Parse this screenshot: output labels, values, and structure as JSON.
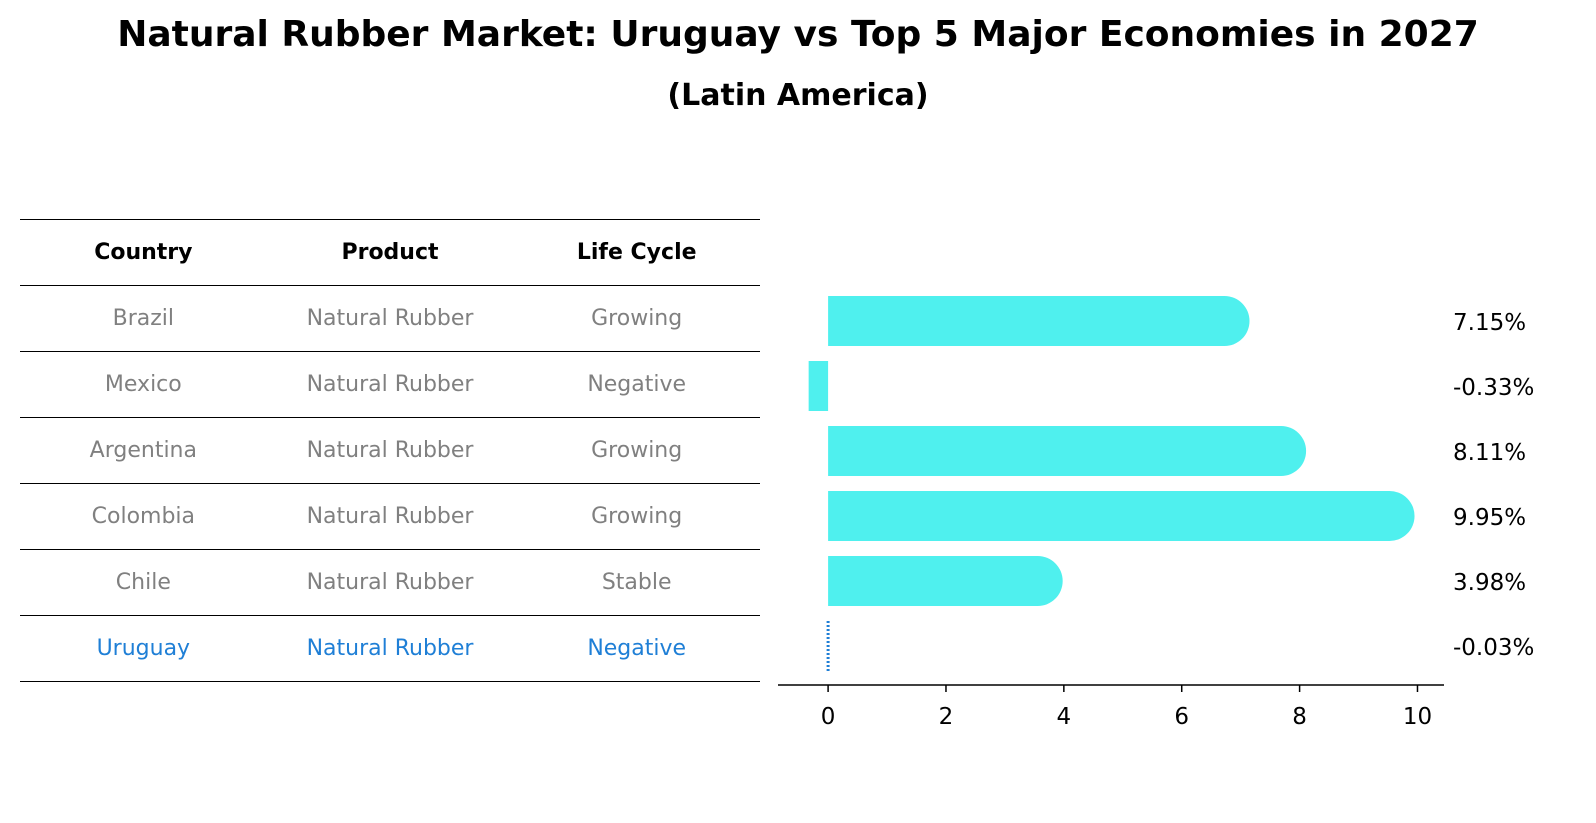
{
  "title": "Natural Rubber Market: Uruguay vs Top 5 Major Economies in 2027",
  "subtitle": "(Latin America)",
  "table": {
    "headers": [
      "Country",
      "Product",
      "Life Cycle"
    ],
    "rows": [
      {
        "country": "Brazil",
        "product": "Natural Rubber",
        "life_cycle": "Growing"
      },
      {
        "country": "Mexico",
        "product": "Natural Rubber",
        "life_cycle": "Negative"
      },
      {
        "country": "Argentina",
        "product": "Natural Rubber",
        "life_cycle": "Growing"
      },
      {
        "country": "Colombia",
        "product": "Natural Rubber",
        "life_cycle": "Growing"
      },
      {
        "country": "Chile",
        "product": "Natural Rubber",
        "life_cycle": "Stable"
      },
      {
        "country": "Uruguay",
        "product": "Natural Rubber",
        "life_cycle": "Negative"
      }
    ]
  },
  "chart_data": {
    "type": "bar",
    "orientation": "horizontal",
    "categories": [
      "Brazil",
      "Mexico",
      "Argentina",
      "Colombia",
      "Chile",
      "Uruguay"
    ],
    "values": [
      7.15,
      -0.33,
      8.11,
      9.95,
      3.98,
      -0.03
    ],
    "labels": [
      "7.15%",
      "-0.33%",
      "8.11%",
      "9.95%",
      "3.98%",
      "-0.03%"
    ],
    "xlim": [
      -0.85,
      10.45
    ],
    "xticks": [
      0,
      2,
      4,
      6,
      8,
      10
    ],
    "bar_color": "#4ff0ee",
    "highlight_color": "#1f7fd6",
    "highlight_category": "Uruguay"
  }
}
